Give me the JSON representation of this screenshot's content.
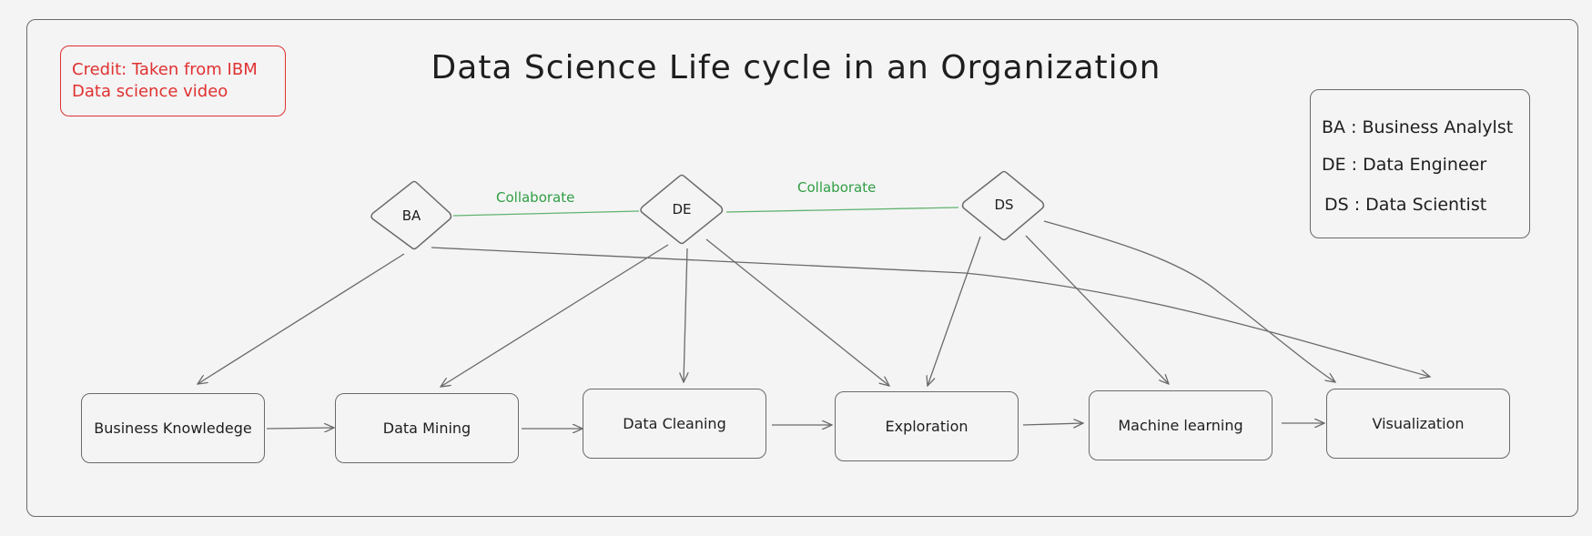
{
  "title": "Data Science Life cycle in an Organization",
  "credit": {
    "line1": "Credit: Taken from IBM",
    "line2": "Data science video"
  },
  "legend": [
    "BA : Business Analylst",
    "DE : Data Engineer",
    "DS : Data Scientist"
  ],
  "roles": {
    "ba": "BA",
    "de": "DE",
    "ds": "DS"
  },
  "collaborate": [
    "Collaborate",
    "Collaborate"
  ],
  "stages": [
    "Business Knowledege",
    "Data Mining",
    "Data Cleaning",
    "Exploration",
    "Machine learning",
    "Visualization"
  ],
  "colors": {
    "stroke": "#6a6a6a",
    "credit": "#e03131",
    "collaborate": "#2f9e44",
    "background": "#f4f4f4"
  }
}
